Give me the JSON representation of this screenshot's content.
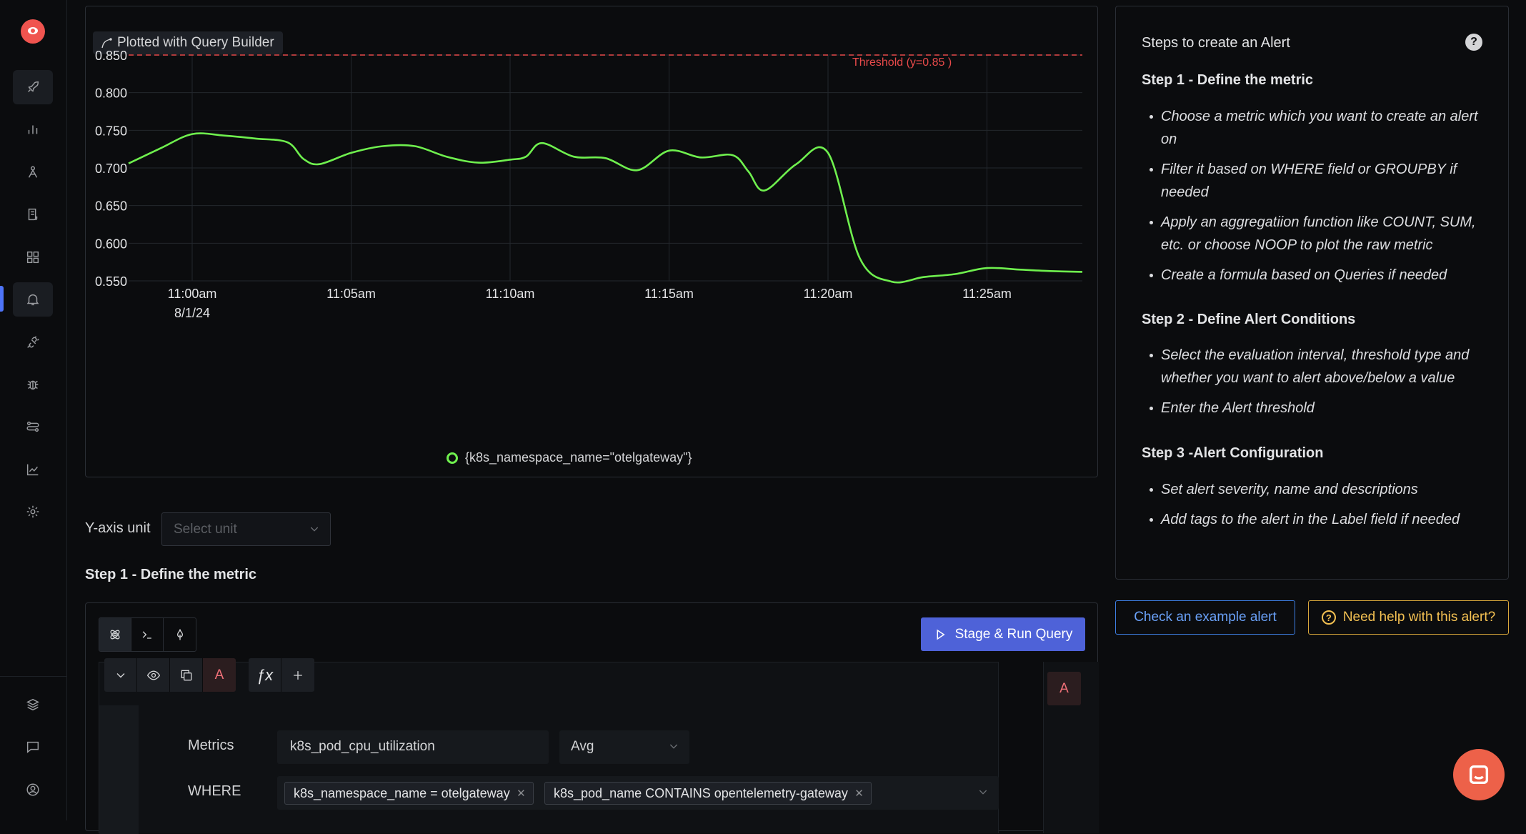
{
  "sidebar": {
    "items": [
      {
        "icon": "rocket-icon"
      },
      {
        "icon": "bar-chart-icon"
      },
      {
        "icon": "traces-icon"
      },
      {
        "icon": "logs-icon"
      },
      {
        "icon": "dashboard-grid-icon"
      },
      {
        "icon": "alert-bell-icon"
      },
      {
        "icon": "integrations-plug-icon"
      },
      {
        "icon": "bug-icon"
      },
      {
        "icon": "pipelines-icon"
      },
      {
        "icon": "usage-chart-icon"
      },
      {
        "icon": "settings-gear-icon"
      }
    ],
    "bottom_items": [
      {
        "icon": "layers-icon"
      },
      {
        "icon": "chat-icon"
      },
      {
        "icon": "user-avatar-icon"
      }
    ],
    "active_index": 5
  },
  "chart_card": {
    "plotted_prefix": "Plotted with",
    "plotted_source": "Query Builder",
    "legend_label": "{k8s_namespace_name=\"otelgateway\"}"
  },
  "chart_data": {
    "type": "line",
    "title": "",
    "xlabel": "",
    "ylabel": "",
    "ylim": [
      0.55,
      0.85
    ],
    "y_ticks": [
      "0.850",
      "0.800",
      "0.750",
      "0.700",
      "0.650",
      "0.600",
      "0.550"
    ],
    "x_ticks": [
      {
        "label": "11:00am",
        "sub": "8/1/24"
      },
      {
        "label": "11:05am",
        "sub": ""
      },
      {
        "label": "11:10am",
        "sub": ""
      },
      {
        "label": "11:15am",
        "sub": ""
      },
      {
        "label": "11:20am",
        "sub": ""
      },
      {
        "label": "11:25am",
        "sub": ""
      }
    ],
    "x_minutes": [
      -2,
      -1,
      0,
      1,
      2,
      3,
      3.5,
      4,
      5,
      6,
      7,
      8,
      9,
      10,
      10.5,
      11,
      12,
      13,
      14,
      15,
      16,
      17,
      17.5,
      18,
      19,
      20,
      21,
      22,
      23,
      24,
      25,
      26,
      27,
      28
    ],
    "series": [
      {
        "name": "{k8s_namespace_name=\"otelgateway\"}",
        "color": "#6ff04e",
        "values": [
          0.706,
          0.726,
          0.745,
          0.743,
          0.739,
          0.734,
          0.712,
          0.705,
          0.72,
          0.729,
          0.729,
          0.715,
          0.707,
          0.711,
          0.715,
          0.733,
          0.715,
          0.713,
          0.697,
          0.723,
          0.714,
          0.717,
          0.695,
          0.67,
          0.705,
          0.72,
          0.58,
          0.549,
          0.555,
          0.559,
          0.567,
          0.565,
          0.563,
          0.562
        ]
      }
    ],
    "threshold": {
      "value": 0.85,
      "label": "Threshold (y=0.85 )",
      "color": "#e84a4a"
    }
  },
  "y_axis_unit": {
    "label": "Y-axis unit",
    "placeholder": "Select unit"
  },
  "step1_title": "Step 1 - Define the metric",
  "query": {
    "run_button": "Stage & Run Query",
    "query_letter": "A",
    "fx_label": "ƒx",
    "metrics_label": "Metrics",
    "metric_value": "k8s_pod_cpu_utilization",
    "aggregation": "Avg",
    "where_label": "WHERE",
    "where_chips": [
      "k8s_namespace_name = otelgateway",
      "k8s_pod_name CONTAINS opentelemetry-gateway"
    ]
  },
  "steps_panel": {
    "title": "Steps to create an Alert",
    "step1": {
      "heading": "Step 1 - Define the metric",
      "items": [
        "Choose a metric which you want to create an alert on",
        "Filter it based on WHERE field or GROUPBY if needed",
        "Apply an aggregatiion function like COUNT, SUM, etc. or choose NOOP to plot the raw metric",
        "Create a formula based on Queries if needed"
      ]
    },
    "step2": {
      "heading": "Step 2 - Define Alert Conditions",
      "items": [
        "Select the evaluation interval, threshold type and whether you want to alert above/below a value",
        "Enter the Alert threshold"
      ]
    },
    "step3": {
      "heading": "Step 3 -Alert Configuration",
      "items": [
        "Set alert severity, name and descriptions",
        "Add tags to the alert in the Label field if needed"
      ]
    }
  },
  "buttons": {
    "example_alert": "Check an example alert",
    "need_help": "Need help with this alert?"
  }
}
